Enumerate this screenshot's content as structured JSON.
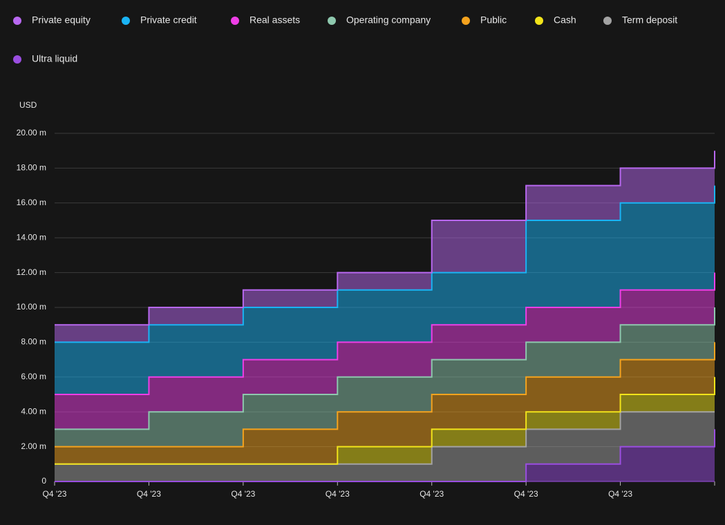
{
  "chart_data": {
    "type": "stepped-area",
    "y_axis_label": "USD",
    "categories": [
      "Q4 '23",
      "Q4 '23",
      "Q4 '23",
      "Q4 '23",
      "Q4 '23",
      "Q4 '23",
      "Q4 '23",
      null
    ],
    "series": [
      {
        "name": "Private equity",
        "color": "#b868f0",
        "values": [
          1,
          1,
          1,
          1,
          3,
          2,
          2,
          2
        ]
      },
      {
        "name": "Private  credit",
        "color": "#1ab4f5",
        "values": [
          3,
          3,
          3,
          3,
          3,
          5,
          5,
          5
        ]
      },
      {
        "name": "Real assets",
        "color": "#ee3ee6",
        "values": [
          2,
          2,
          2,
          2,
          2,
          2,
          2,
          2
        ]
      },
      {
        "name": "Operating company",
        "color": "#8ec8ae",
        "values": [
          1,
          2,
          2,
          2,
          2,
          2,
          2,
          2
        ]
      },
      {
        "name": "Public",
        "color": "#f5a31e",
        "values": [
          1,
          1,
          2,
          2,
          2,
          2,
          2,
          2
        ]
      },
      {
        "name": "Cash",
        "color": "#f2e41a",
        "values": [
          0,
          0,
          0,
          1,
          1,
          1,
          1,
          2
        ]
      },
      {
        "name": "Term deposit",
        "color": "#a3a3a3",
        "values": [
          1,
          1,
          1,
          1,
          2,
          2,
          2,
          1
        ]
      },
      {
        "name": "Ultra liquid",
        "color": "#9a4ee0",
        "values": [
          0,
          0,
          0,
          0,
          0,
          1,
          2,
          3
        ]
      }
    ],
    "ylim": [
      0,
      20
    ],
    "yticks": [
      0,
      {
        "value": 2,
        "label": "2.00 m"
      },
      {
        "value": 4,
        "label": "4.00 m"
      },
      {
        "value": 6,
        "label": "6.00 m"
      },
      {
        "value": 8,
        "label": "8.00 m"
      },
      {
        "value": 10,
        "label": "10.00 m"
      },
      {
        "value": 12,
        "label": "12.00 m"
      },
      {
        "value": 14,
        "label": "14.00 m"
      },
      {
        "value": 16,
        "label": "16.00 m"
      },
      {
        "value": 18,
        "label": "18.00 m"
      },
      {
        "value": 20,
        "label": "20.00 m"
      }
    ],
    "grid": true,
    "stacked": true,
    "legend": "top"
  }
}
